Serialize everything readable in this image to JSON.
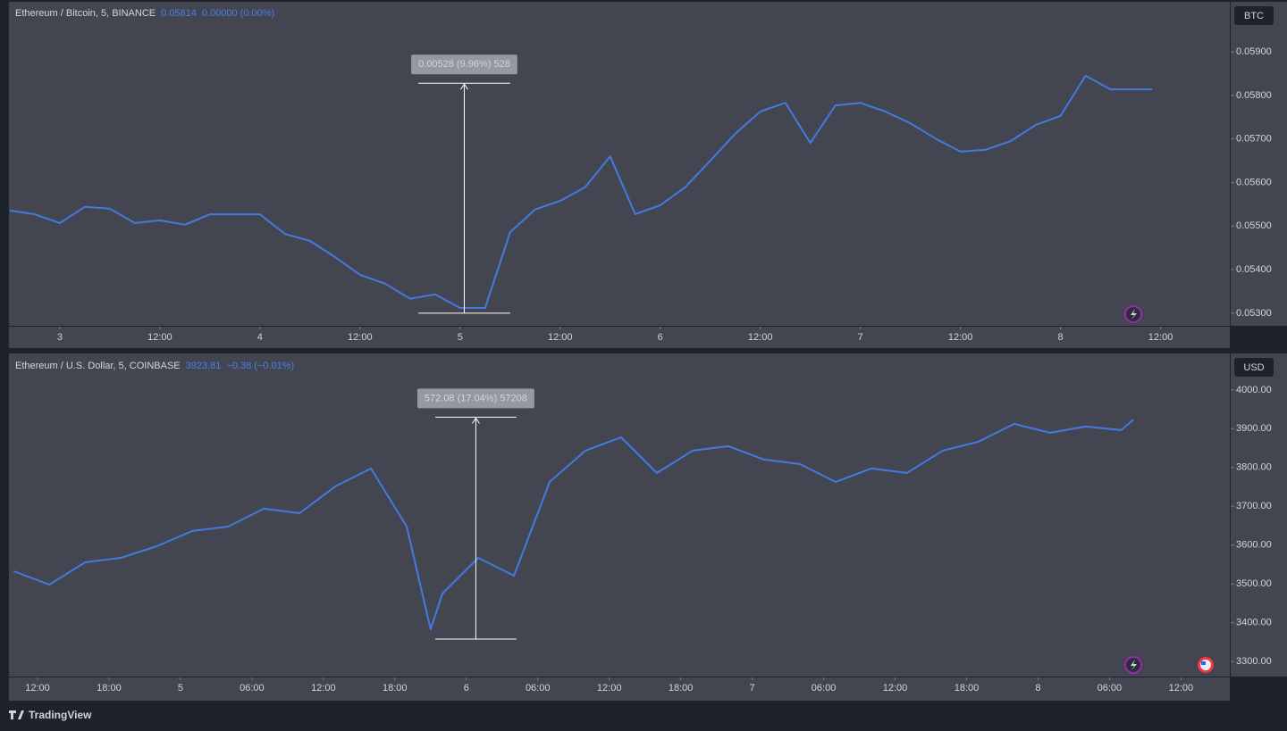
{
  "chart_data": [
    {
      "type": "line",
      "header": {
        "symbol": "Ethereum / Bitcoin, 5, BINANCE",
        "price": "0.05814",
        "change": "0.00000 (0.00%)"
      },
      "currency": "BTC",
      "x": [
        -6,
        -3,
        0,
        3,
        6,
        9,
        12,
        15,
        18,
        21,
        24,
        27,
        30,
        33,
        36,
        39,
        42,
        45,
        48,
        51,
        54,
        57,
        60,
        63,
        66,
        69,
        72,
        75,
        78,
        81,
        84,
        87,
        90,
        93,
        96,
        99,
        102,
        105,
        108,
        111,
        114,
        117,
        120,
        123,
        126,
        129,
        131
      ],
      "series": [
        {
          "name": "ETHBTC",
          "color": "#4479e0",
          "values": [
            0.05536,
            0.05527,
            0.05507,
            0.05544,
            0.0554,
            0.05507,
            0.05513,
            0.05503,
            0.05527,
            0.05527,
            0.05527,
            0.05482,
            0.05466,
            0.05429,
            0.05388,
            0.05368,
            0.05333,
            0.05343,
            0.05312,
            0.05312,
            0.05486,
            0.05538,
            0.05558,
            0.05589,
            0.0566,
            0.05527,
            0.05548,
            0.05589,
            0.0565,
            0.05712,
            0.05763,
            0.05783,
            0.05691,
            0.05777,
            0.05783,
            0.05763,
            0.05736,
            0.05701,
            0.05671,
            0.05675,
            0.05695,
            0.05732,
            0.05753,
            0.05845,
            0.05814,
            0.05814,
            0.05814
          ]
        }
      ],
      "xlim": [
        -6.1,
        140.3
      ],
      "xticks": [
        {
          "value": 0,
          "label": "3"
        },
        {
          "value": 12,
          "label": "12:00"
        },
        {
          "value": 24,
          "label": "4"
        },
        {
          "value": 36,
          "label": "12:00"
        },
        {
          "value": 48,
          "label": "5"
        },
        {
          "value": 60,
          "label": "12:00"
        },
        {
          "value": 72,
          "label": "6"
        },
        {
          "value": 84,
          "label": "12:00"
        },
        {
          "value": 96,
          "label": "7"
        },
        {
          "value": 108,
          "label": "12:00"
        },
        {
          "value": 120,
          "label": "8"
        },
        {
          "value": 132,
          "label": "12:00"
        }
      ],
      "ylim": [
        0.05271,
        0.06015
      ],
      "yticks": [
        {
          "value": 0.053,
          "label": "0.05300"
        },
        {
          "value": 0.054,
          "label": "0.05400"
        },
        {
          "value": 0.055,
          "label": "0.05500"
        },
        {
          "value": 0.056,
          "label": "0.05600"
        },
        {
          "value": 0.057,
          "label": "0.05700"
        },
        {
          "value": 0.058,
          "label": "0.05800"
        },
        {
          "value": 0.059,
          "label": "0.05900"
        }
      ],
      "measure": {
        "label": "0.00528 (9.96%) 528",
        "from": 0.053,
        "to": 0.05828,
        "x": [
          43,
          54
        ]
      }
    },
    {
      "type": "line",
      "header": {
        "symbol": "Ethereum / U.S. Dollar, 5, COINBASE",
        "price": "3923.81",
        "change": "−0.38 (−0.01%)"
      },
      "currency": "USD",
      "x": [
        -14,
        -11,
        -8,
        -5,
        -2,
        1,
        4,
        7,
        10,
        13,
        16,
        19,
        21,
        22,
        25,
        28,
        31,
        34,
        37,
        40,
        43,
        46,
        49,
        52,
        55,
        58,
        61,
        64,
        67,
        70,
        73,
        76,
        79,
        80
      ],
      "series": [
        {
          "name": "ETHUSD",
          "color": "#4479e0",
          "values": [
            3532.6,
            3498,
            3555.6,
            3567.1,
            3597,
            3636.2,
            3647.7,
            3693.8,
            3682.2,
            3751.3,
            3797.4,
            3647.7,
            3382.9,
            3475,
            3567.1,
            3521.1,
            3762.8,
            3843.4,
            3878,
            3785.9,
            3843.4,
            3854.9,
            3820.4,
            3808.9,
            3762.8,
            3797.4,
            3785.9,
            3843.4,
            3866.4,
            3912.5,
            3889.5,
            3905.6,
            3896.4,
            3923.81
          ]
        }
      ],
      "xlim": [
        -14.4,
        88.1
      ],
      "xticks": [
        {
          "value": -12,
          "label": "12:00"
        },
        {
          "value": -6,
          "label": "18:00"
        },
        {
          "value": 0,
          "label": "5"
        },
        {
          "value": 6,
          "label": "06:00"
        },
        {
          "value": 12,
          "label": "12:00"
        },
        {
          "value": 18,
          "label": "18:00"
        },
        {
          "value": 24,
          "label": "6"
        },
        {
          "value": 30,
          "label": "06:00"
        },
        {
          "value": 36,
          "label": "12:00"
        },
        {
          "value": 42,
          "label": "18:00"
        },
        {
          "value": 48,
          "label": "7"
        },
        {
          "value": 54,
          "label": "06:00"
        },
        {
          "value": 60,
          "label": "12:00"
        },
        {
          "value": 66,
          "label": "18:00"
        },
        {
          "value": 72,
          "label": "8"
        },
        {
          "value": 78,
          "label": "06:00"
        },
        {
          "value": 84,
          "label": "12:00"
        }
      ],
      "ylim": [
        3261,
        4094
      ],
      "yticks": [
        {
          "value": 3300,
          "label": "3300.00"
        },
        {
          "value": 3400,
          "label": "3400.00"
        },
        {
          "value": 3500,
          "label": "3500.00"
        },
        {
          "value": 3600,
          "label": "3600.00"
        },
        {
          "value": 3700,
          "label": "3700.00"
        },
        {
          "value": 3800,
          "label": "3800.00"
        },
        {
          "value": 3900,
          "label": "3900.00"
        },
        {
          "value": 4000,
          "label": "4000.00"
        }
      ],
      "measure": {
        "label": "572.08 (17.04%) 57208",
        "from": 3357.6,
        "to": 3929.68,
        "x": [
          21.4,
          28.2
        ]
      }
    }
  ],
  "footer": "TradingView"
}
